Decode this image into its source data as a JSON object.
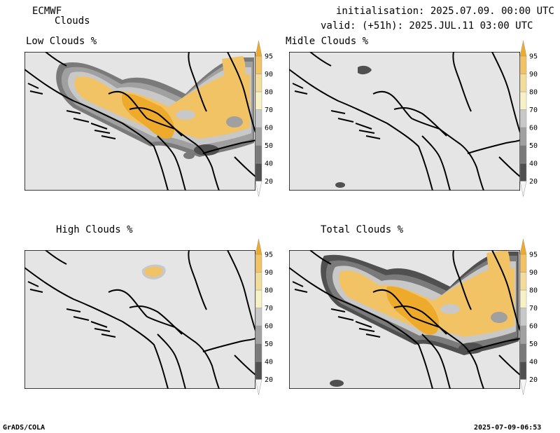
{
  "header": {
    "model": "ECMWF",
    "product": "Clouds",
    "init": "initialisation: 2025.07.09. 00:00 UTC",
    "valid": "valid: (+51h): 2025.JUL.11 03:00 UTC"
  },
  "panels": [
    {
      "title": "Low Clouds %"
    },
    {
      "title": "Midle Clouds %"
    },
    {
      "title": "High Clouds %"
    },
    {
      "title": "Total Clouds %"
    }
  ],
  "colorbar": {
    "levels": [
      "20",
      "40",
      "50",
      "60",
      "70",
      "80",
      "90",
      "95"
    ],
    "colors": [
      "#f5f5f5",
      "#505050",
      "#7a7a7a",
      "#a0a0a0",
      "#c8c8c8",
      "#f7f2c6",
      "#f2dc99",
      "#f1c364",
      "#eeaa2a"
    ]
  },
  "footer": {
    "left": "GrADS/COLA",
    "right": "2025-07-09-06:53"
  }
}
